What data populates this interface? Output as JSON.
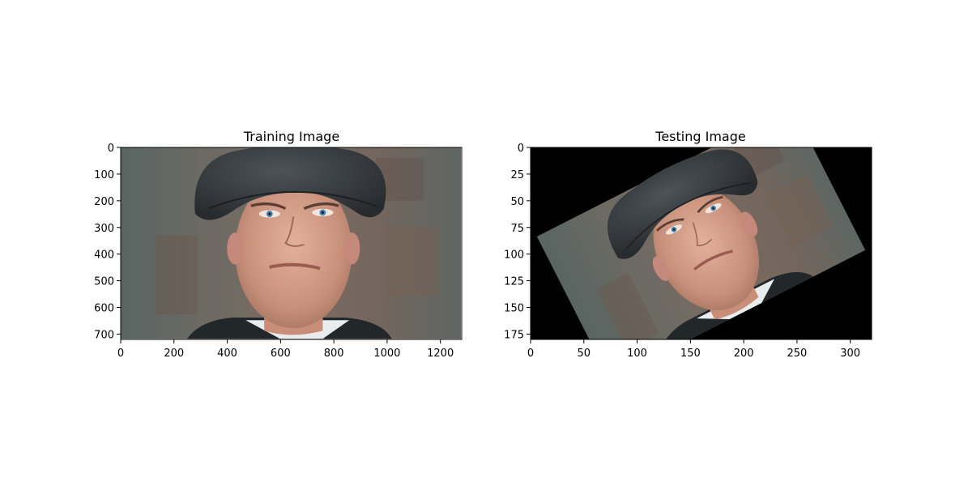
{
  "chart_data": [
    {
      "type": "image",
      "title": "Training Image",
      "xlim": [
        0,
        1280
      ],
      "ylim": [
        720,
        0
      ],
      "xticks": [
        0,
        200,
        400,
        600,
        800,
        1000,
        1200
      ],
      "yticks": [
        0,
        100,
        200,
        300,
        400,
        500,
        600,
        700
      ],
      "content": "portrait photo, unrotated"
    },
    {
      "type": "image",
      "title": "Testing Image",
      "xlim": [
        0,
        320
      ],
      "ylim": [
        180,
        0
      ],
      "xticks": [
        0,
        50,
        100,
        150,
        200,
        250,
        300
      ],
      "yticks": [
        0,
        25,
        50,
        75,
        100,
        125,
        150,
        175
      ],
      "content": "same portrait photo, downscaled and rotated with black fill"
    }
  ]
}
